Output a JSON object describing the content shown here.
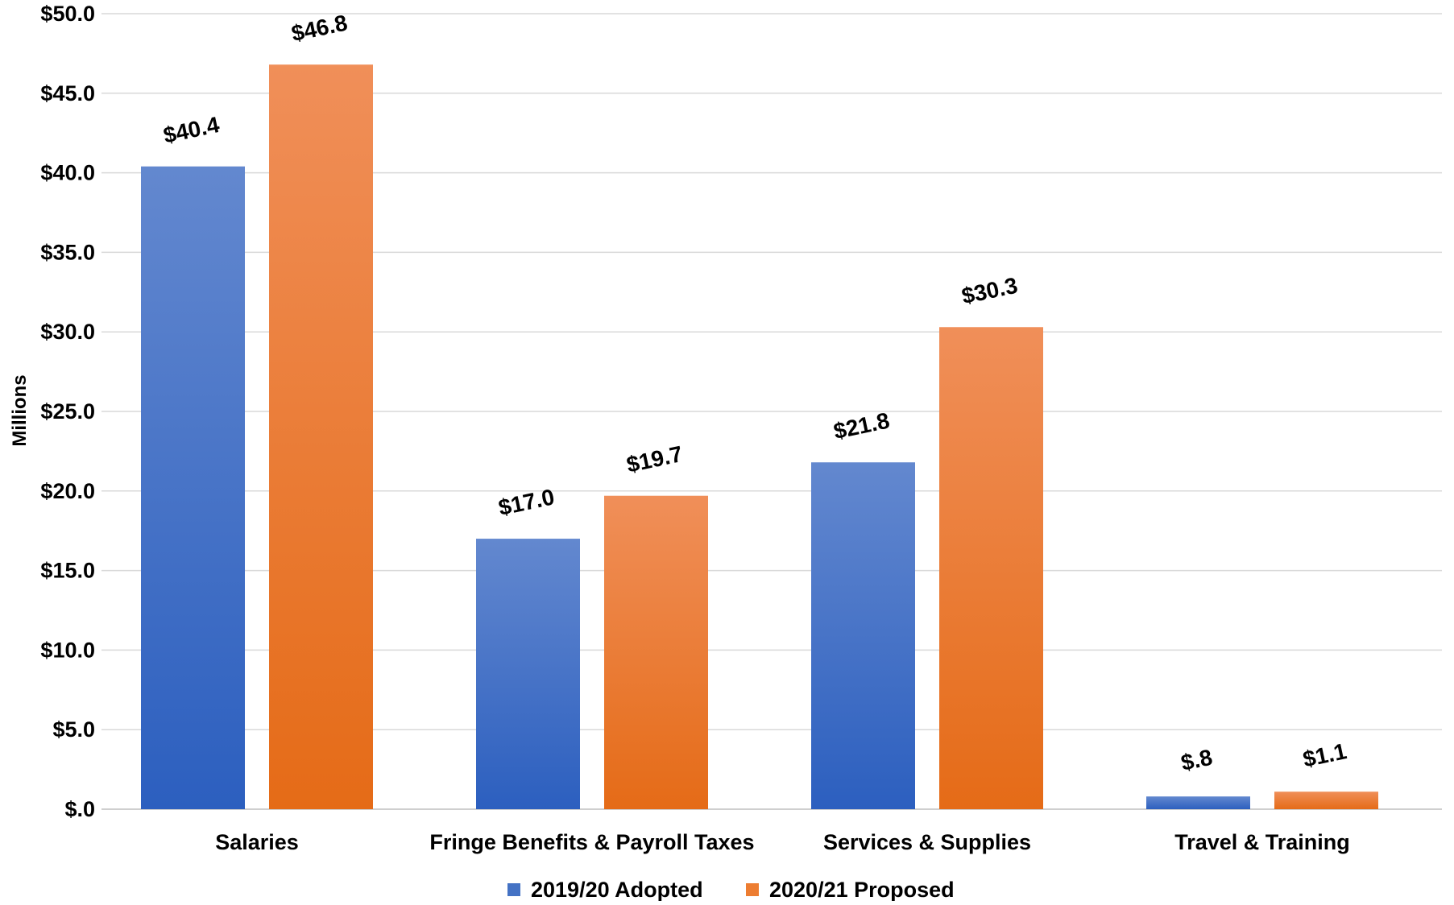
{
  "chart_data": {
    "type": "bar",
    "title": "",
    "xlabel": "",
    "ylabel": "Millions",
    "ylim": [
      0,
      50
    ],
    "yticks": [
      0,
      5,
      10,
      15,
      20,
      25,
      30,
      35,
      40,
      45,
      50
    ],
    "ytick_labels": [
      "$.0",
      "$5.0",
      "$10.0",
      "$15.0",
      "$20.0",
      "$25.0",
      "$30.0",
      "$35.0",
      "$40.0",
      "$45.0",
      "$50.0"
    ],
    "categories": [
      "Salaries",
      "Fringe Benefits & Payroll Taxes",
      "Services & Supplies",
      "Travel & Training"
    ],
    "series": [
      {
        "name": "2019/20 Adopted",
        "color": "#4472c4",
        "values": [
          40.4,
          17.0,
          21.8,
          0.8
        ],
        "labels": [
          "$40.4",
          "$17.0",
          "$21.8",
          "$.8"
        ]
      },
      {
        "name": "2020/21 Proposed",
        "color": "#ed7d31",
        "values": [
          46.8,
          19.7,
          30.3,
          1.1
        ],
        "labels": [
          "$46.8",
          "$19.7",
          "$30.3",
          "$1.1"
        ]
      }
    ],
    "grid": true,
    "legend_position": "bottom"
  }
}
